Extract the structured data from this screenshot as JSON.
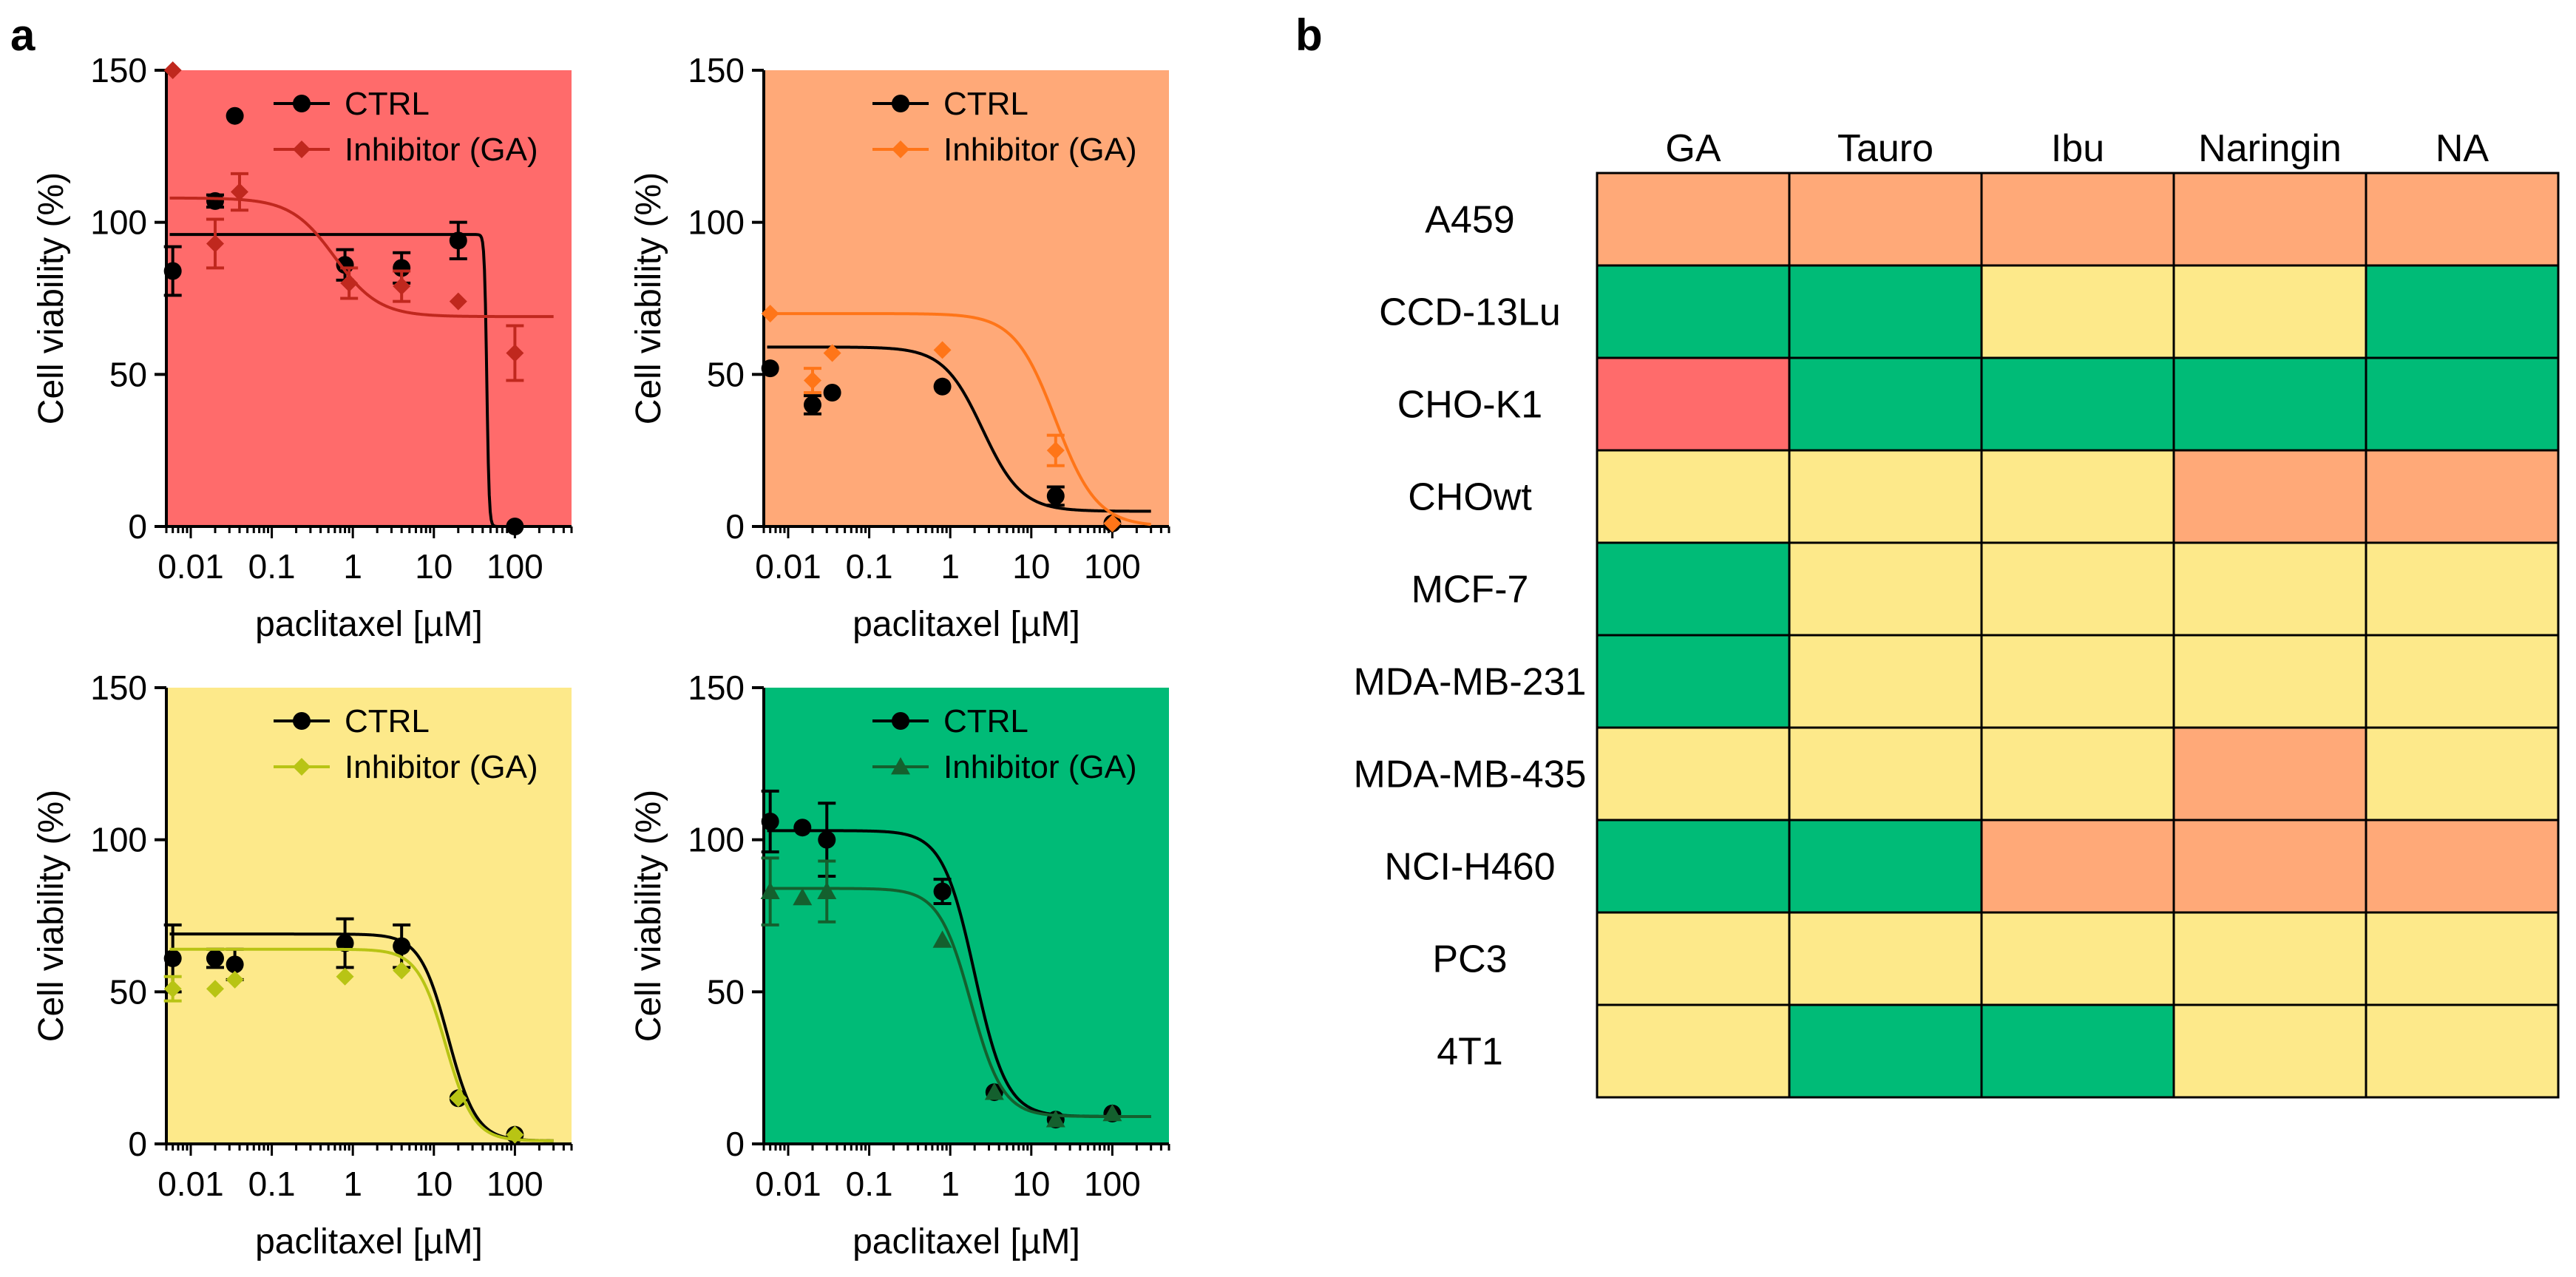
{
  "figure": {
    "panel_a_label": "a",
    "panel_b_label": "b"
  },
  "colors": {
    "red": "#ff6b6b",
    "orange": "#ffa978",
    "yellow": "#fde98a",
    "green": "#00bb77",
    "ctrl_line": "#000000"
  },
  "chart_data": [
    {
      "id": "dose-response-red",
      "type": "line",
      "background": "red",
      "xlabel": "paclitaxel [µM]",
      "ylabel": "Cell viability (%)",
      "xscale": "log",
      "xlim": [
        0.005,
        500
      ],
      "ylim": [
        0,
        150
      ],
      "xticks": [
        0.01,
        0.1,
        1,
        10,
        100
      ],
      "xtick_labels": [
        "0.01",
        "0.1",
        "1",
        "10",
        "100"
      ],
      "yticks": [
        0,
        50,
        100,
        150
      ],
      "ytick_labels": [
        "0",
        "50",
        "100",
        "150"
      ],
      "legend_position": "top-center",
      "series": [
        {
          "name": "CTRL",
          "color": "#000000",
          "marker": "circle",
          "points": [
            [
              0.006,
              84,
              8
            ],
            [
              0.02,
              107,
              2
            ],
            [
              0.035,
              135,
              0
            ],
            [
              0.8,
              86,
              5
            ],
            [
              4,
              85,
              5
            ],
            [
              20,
              94,
              6
            ],
            [
              100,
              0,
              0
            ]
          ],
          "fit": {
            "top": 96,
            "bottom": 0,
            "ec50": 45,
            "hill": 30
          }
        },
        {
          "name": "Inhibitor (GA)",
          "color": "#c0281e",
          "marker": "diamond",
          "points": [
            [
              0.006,
              150,
              0
            ],
            [
              0.02,
              93,
              8
            ],
            [
              0.04,
              110,
              6
            ],
            [
              0.9,
              80,
              5
            ],
            [
              4,
              79,
              5
            ],
            [
              20,
              74,
              0
            ],
            [
              100,
              57,
              9
            ]
          ],
          "fit": {
            "top": 108,
            "bottom": 69,
            "ec50": 0.6,
            "hill": 1.6
          }
        }
      ]
    },
    {
      "id": "dose-response-orange",
      "type": "line",
      "background": "orange",
      "xlabel": "paclitaxel [µM]",
      "ylabel": "Cell viability (%)",
      "xscale": "log",
      "xlim": [
        0.005,
        500
      ],
      "ylim": [
        0,
        150
      ],
      "xticks": [
        0.01,
        0.1,
        1,
        10,
        100
      ],
      "xtick_labels": [
        "0.01",
        "0.1",
        "1",
        "10",
        "100"
      ],
      "yticks": [
        0,
        50,
        100,
        150
      ],
      "ytick_labels": [
        "0",
        "50",
        "100",
        "150"
      ],
      "legend_position": "top-right",
      "series": [
        {
          "name": "CTRL",
          "color": "#000000",
          "marker": "circle",
          "points": [
            [
              0.006,
              52,
              0
            ],
            [
              0.02,
              40,
              3
            ],
            [
              0.035,
              44,
              0
            ],
            [
              0.8,
              46,
              0
            ],
            [
              20,
              10,
              3
            ],
            [
              100,
              1,
              0
            ]
          ],
          "fit": {
            "top": 59,
            "bottom": 5,
            "ec50": 2.5,
            "hill": 1.8
          }
        },
        {
          "name": "Inhibitor (GA)",
          "color": "#ff7518",
          "marker": "diamond",
          "points": [
            [
              0.006,
              70,
              0
            ],
            [
              0.02,
              48,
              4
            ],
            [
              0.035,
              57,
              0
            ],
            [
              0.8,
              58,
              0
            ],
            [
              20,
              25,
              5
            ],
            [
              100,
              1,
              0
            ]
          ],
          "fit": {
            "top": 70,
            "bottom": 0,
            "ec50": 20,
            "hill": 1.7
          }
        }
      ]
    },
    {
      "id": "dose-response-yellow",
      "type": "line",
      "background": "yellow",
      "xlabel": "paclitaxel [µM]",
      "ylabel": "Cell viability (%)",
      "xscale": "log",
      "xlim": [
        0.005,
        500
      ],
      "ylim": [
        0,
        150
      ],
      "xticks": [
        0.01,
        0.1,
        1,
        10,
        100
      ],
      "xtick_labels": [
        "0.01",
        "0.1",
        "1",
        "10",
        "100"
      ],
      "yticks": [
        0,
        50,
        100,
        150
      ],
      "ytick_labels": [
        "0",
        "50",
        "100",
        "150"
      ],
      "legend_position": "top-center",
      "series": [
        {
          "name": "CTRL",
          "color": "#000000",
          "marker": "circle",
          "points": [
            [
              0.006,
              61,
              11
            ],
            [
              0.02,
              61,
              3
            ],
            [
              0.035,
              59,
              5
            ],
            [
              0.8,
              66,
              8
            ],
            [
              4,
              65,
              7
            ],
            [
              20,
              15,
              0
            ],
            [
              100,
              3,
              0
            ]
          ],
          "fit": {
            "top": 69,
            "bottom": 1,
            "ec50": 15,
            "hill": 2.5
          }
        },
        {
          "name": "Inhibitor (GA)",
          "color": "#b8c414",
          "marker": "diamond",
          "points": [
            [
              0.006,
              51,
              4
            ],
            [
              0.02,
              51,
              0
            ],
            [
              0.035,
              54,
              0
            ],
            [
              0.8,
              55,
              0
            ],
            [
              4,
              57,
              0
            ],
            [
              20,
              15,
              0
            ],
            [
              100,
              3,
              0
            ]
          ],
          "fit": {
            "top": 64,
            "bottom": 1,
            "ec50": 14,
            "hill": 2.5
          }
        }
      ]
    },
    {
      "id": "dose-response-green",
      "type": "line",
      "background": "green",
      "xlabel": "paclitaxel [µM]",
      "ylabel": "Cell viability (%)",
      "xscale": "log",
      "xlim": [
        0.005,
        500
      ],
      "ylim": [
        0,
        150
      ],
      "xticks": [
        0.01,
        0.1,
        1,
        10,
        100
      ],
      "xtick_labels": [
        "0.01",
        "0.1",
        "1",
        "10",
        "100"
      ],
      "yticks": [
        0,
        50,
        100,
        150
      ],
      "ytick_labels": [
        "0",
        "50",
        "100",
        "150"
      ],
      "legend_position": "top-right",
      "series": [
        {
          "name": "CTRL",
          "color": "#000000",
          "marker": "circle",
          "points": [
            [
              0.006,
              106,
              10
            ],
            [
              0.015,
              104,
              0
            ],
            [
              0.03,
              100,
              12
            ],
            [
              0.8,
              83,
              4
            ],
            [
              3.5,
              17,
              0
            ],
            [
              20,
              8,
              0
            ],
            [
              100,
              10,
              0
            ]
          ],
          "fit": {
            "top": 103,
            "bottom": 9,
            "ec50": 2,
            "hill": 2.2
          }
        },
        {
          "name": "Inhibitor (GA)",
          "color": "#14602e",
          "marker": "triangle",
          "points": [
            [
              0.006,
              83,
              11
            ],
            [
              0.015,
              81,
              0
            ],
            [
              0.03,
              83,
              10
            ],
            [
              0.8,
              67,
              0
            ],
            [
              3.5,
              17,
              0
            ],
            [
              20,
              8,
              0
            ],
            [
              100,
              10,
              0
            ]
          ],
          "fit": {
            "top": 84,
            "bottom": 9,
            "ec50": 1.8,
            "hill": 2.2
          }
        }
      ]
    },
    {
      "id": "heatmap",
      "type": "heatmap",
      "columns": [
        "GA",
        "Tauro",
        "Ibu",
        "Naringin",
        "NA"
      ],
      "rows": [
        "A459",
        "CCD-13Lu",
        "CHO-K1",
        "CHOwt",
        "MCF-7",
        "MDA-MB-231",
        "MDA-MB-435",
        "NCI-H460",
        "PC3",
        "4T1"
      ],
      "category_colors": {
        "red": "#ff6b6b",
        "orange": "#ffa978",
        "yellow": "#fde98a",
        "green": "#00bb77"
      },
      "values": [
        [
          "orange",
          "orange",
          "orange",
          "orange",
          "orange"
        ],
        [
          "green",
          "green",
          "yellow",
          "yellow",
          "green"
        ],
        [
          "red",
          "green",
          "green",
          "green",
          "green"
        ],
        [
          "yellow",
          "yellow",
          "yellow",
          "orange",
          "orange"
        ],
        [
          "green",
          "yellow",
          "yellow",
          "yellow",
          "yellow"
        ],
        [
          "green",
          "yellow",
          "yellow",
          "yellow",
          "yellow"
        ],
        [
          "yellow",
          "yellow",
          "yellow",
          "orange",
          "yellow"
        ],
        [
          "green",
          "green",
          "orange",
          "orange",
          "orange"
        ],
        [
          "yellow",
          "yellow",
          "yellow",
          "yellow",
          "yellow"
        ],
        [
          "yellow",
          "green",
          "green",
          "yellow",
          "yellow"
        ]
      ]
    }
  ]
}
